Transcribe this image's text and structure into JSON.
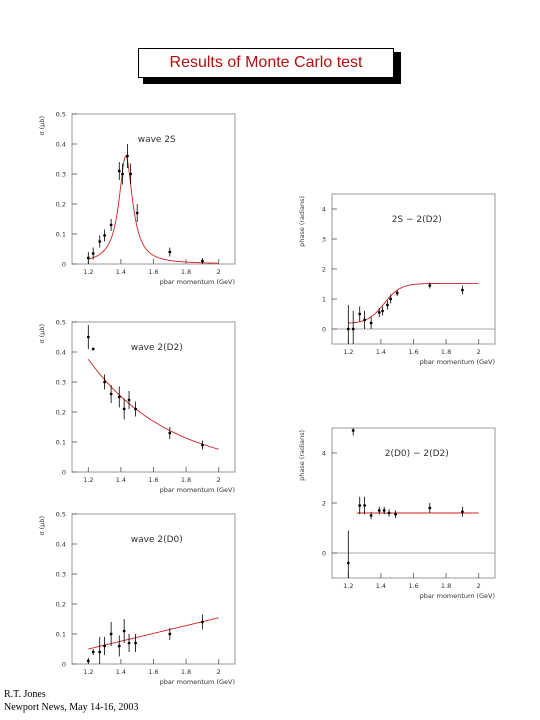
{
  "title": "Results of Monte Carlo test",
  "footer": {
    "author": "R.T. Jones",
    "event": "Newport News, May 14-16, 2003"
  },
  "colors": {
    "curve": "#d22020",
    "title": "#b01010",
    "points": "#000000"
  },
  "chart_data": [
    {
      "type": "scatter",
      "annotation": "wave 2S",
      "xlabel": "pbar momentum (GeV)",
      "ylabel": "σ (μb)",
      "xlim": [
        1.1,
        2.1
      ],
      "ylim": [
        0,
        0.5
      ],
      "xticks": [
        1.2,
        1.4,
        1.6,
        1.8,
        2
      ],
      "yticks": [
        0,
        0.1,
        0.2,
        0.3,
        0.4,
        0.5
      ],
      "points": [
        {
          "x": 1.2,
          "y": 0.02,
          "err": 0.02
        },
        {
          "x": 1.23,
          "y": 0.035,
          "err": 0.02
        },
        {
          "x": 1.27,
          "y": 0.075,
          "err": 0.02
        },
        {
          "x": 1.3,
          "y": 0.095,
          "err": 0.02
        },
        {
          "x": 1.34,
          "y": 0.13,
          "err": 0.02
        },
        {
          "x": 1.39,
          "y": 0.31,
          "err": 0.03
        },
        {
          "x": 1.41,
          "y": 0.3,
          "err": 0.035
        },
        {
          "x": 1.44,
          "y": 0.36,
          "err": 0.04
        },
        {
          "x": 1.46,
          "y": 0.3,
          "err": 0.035
        },
        {
          "x": 1.5,
          "y": 0.17,
          "err": 0.03
        },
        {
          "x": 1.7,
          "y": 0.04,
          "err": 0.015
        },
        {
          "x": 1.9,
          "y": 0.01,
          "err": 0.01
        }
      ],
      "curve": {
        "kind": "bw",
        "m": 1.43,
        "g": 0.1,
        "peak": 0.36
      }
    },
    {
      "type": "scatter",
      "annotation": "wave 2(D2)",
      "xlabel": "pbar momentum (GeV)",
      "ylabel": "σ (μb)",
      "xlim": [
        1.1,
        2.1
      ],
      "ylim": [
        0,
        0.5
      ],
      "xticks": [
        1.2,
        1.4,
        1.6,
        1.8,
        2
      ],
      "yticks": [
        0,
        0.1,
        0.2,
        0.3,
        0.4,
        0.5
      ],
      "points": [
        {
          "x": 1.2,
          "y": 0.45,
          "err": 0.04
        },
        {
          "x": 1.23,
          "y": 0.41,
          "err": 0.005
        },
        {
          "x": 1.3,
          "y": 0.3,
          "err": 0.025
        },
        {
          "x": 1.34,
          "y": 0.26,
          "err": 0.03
        },
        {
          "x": 1.39,
          "y": 0.25,
          "err": 0.035
        },
        {
          "x": 1.42,
          "y": 0.21,
          "err": 0.035
        },
        {
          "x": 1.45,
          "y": 0.24,
          "err": 0.03
        },
        {
          "x": 1.49,
          "y": 0.21,
          "err": 0.025
        },
        {
          "x": 1.7,
          "y": 0.13,
          "err": 0.02
        },
        {
          "x": 1.9,
          "y": 0.09,
          "err": 0.015
        }
      ],
      "curve": {
        "kind": "exp",
        "a": 0.34,
        "x0": 1.25,
        "k": 2.0
      }
    },
    {
      "type": "scatter",
      "annotation": "wave 2(D0)",
      "xlabel": "pbar momentum (GeV)",
      "ylabel": "σ (μb)",
      "xlim": [
        1.1,
        2.1
      ],
      "ylim": [
        0,
        0.5
      ],
      "xticks": [
        1.2,
        1.4,
        1.6,
        1.8,
        2
      ],
      "yticks": [
        0,
        0.1,
        0.2,
        0.3,
        0.4,
        0.5
      ],
      "points": [
        {
          "x": 1.2,
          "y": 0.01,
          "err": 0.01
        },
        {
          "x": 1.23,
          "y": 0.04,
          "err": 0.01
        },
        {
          "x": 1.27,
          "y": 0.04,
          "err": 0.05
        },
        {
          "x": 1.3,
          "y": 0.06,
          "err": 0.03
        },
        {
          "x": 1.34,
          "y": 0.1,
          "err": 0.04
        },
        {
          "x": 1.39,
          "y": 0.06,
          "err": 0.035
        },
        {
          "x": 1.42,
          "y": 0.11,
          "err": 0.04
        },
        {
          "x": 1.45,
          "y": 0.07,
          "err": 0.03
        },
        {
          "x": 1.49,
          "y": 0.07,
          "err": 0.03
        },
        {
          "x": 1.7,
          "y": 0.1,
          "err": 0.02
        },
        {
          "x": 1.9,
          "y": 0.14,
          "err": 0.025
        }
      ],
      "curve": {
        "kind": "lin",
        "a": 0.05,
        "b": 0.13
      }
    },
    {
      "type": "scatter",
      "annotation": "2S − 2(D2)",
      "xlabel": "pbar momentum (GeV)",
      "ylabel": "phase (radians)",
      "xlim": [
        1.1,
        2.1
      ],
      "ylim": [
        -0.5,
        4.5
      ],
      "xticks": [
        1.2,
        1.4,
        1.6,
        1.8,
        2
      ],
      "yticks": [
        0,
        1,
        2,
        3,
        4
      ],
      "refline": 0,
      "points": [
        {
          "x": 1.2,
          "y": 0.0,
          "err": 0.8
        },
        {
          "x": 1.23,
          "y": 0.0,
          "err": 0.6
        },
        {
          "x": 1.27,
          "y": 0.5,
          "err": 0.25
        },
        {
          "x": 1.3,
          "y": 0.3,
          "err": 0.3
        },
        {
          "x": 1.34,
          "y": 0.2,
          "err": 0.2
        },
        {
          "x": 1.39,
          "y": 0.55,
          "err": 0.15
        },
        {
          "x": 1.41,
          "y": 0.6,
          "err": 0.15
        },
        {
          "x": 1.44,
          "y": 0.8,
          "err": 0.15
        },
        {
          "x": 1.46,
          "y": 1.0,
          "err": 0.15
        },
        {
          "x": 1.5,
          "y": 1.2,
          "err": 0.1
        },
        {
          "x": 1.7,
          "y": 1.45,
          "err": 0.1
        },
        {
          "x": 1.9,
          "y": 1.3,
          "err": 0.15
        }
      ],
      "curve": {
        "kind": "sig",
        "lo": 0.18,
        "hi": 1.52,
        "x0": 1.42,
        "s": 0.05
      }
    },
    {
      "type": "scatter",
      "annotation": "2(D0) − 2(D2)",
      "xlabel": "pbar momentum (GeV)",
      "ylabel": "phase (radians)",
      "xlim": [
        1.1,
        2.1
      ],
      "ylim": [
        -1,
        5
      ],
      "xticks": [
        1.2,
        1.4,
        1.6,
        1.8,
        2
      ],
      "yticks": [
        0,
        2,
        4
      ],
      "refline": 0,
      "points": [
        {
          "x": 1.2,
          "y": -0.4,
          "err": 1.3
        },
        {
          "x": 1.23,
          "y": 4.9,
          "err": 0.2
        },
        {
          "x": 1.27,
          "y": 1.9,
          "err": 0.35
        },
        {
          "x": 1.3,
          "y": 1.9,
          "err": 0.35
        },
        {
          "x": 1.34,
          "y": 1.5,
          "err": 0.15
        },
        {
          "x": 1.39,
          "y": 1.7,
          "err": 0.15
        },
        {
          "x": 1.42,
          "y": 1.7,
          "err": 0.15
        },
        {
          "x": 1.45,
          "y": 1.6,
          "err": 0.15
        },
        {
          "x": 1.49,
          "y": 1.55,
          "err": 0.15
        },
        {
          "x": 1.7,
          "y": 1.8,
          "err": 0.2
        },
        {
          "x": 1.9,
          "y": 1.65,
          "err": 0.2
        }
      ],
      "curve": {
        "kind": "const",
        "y": 1.6,
        "x_from": 1.25
      }
    }
  ]
}
